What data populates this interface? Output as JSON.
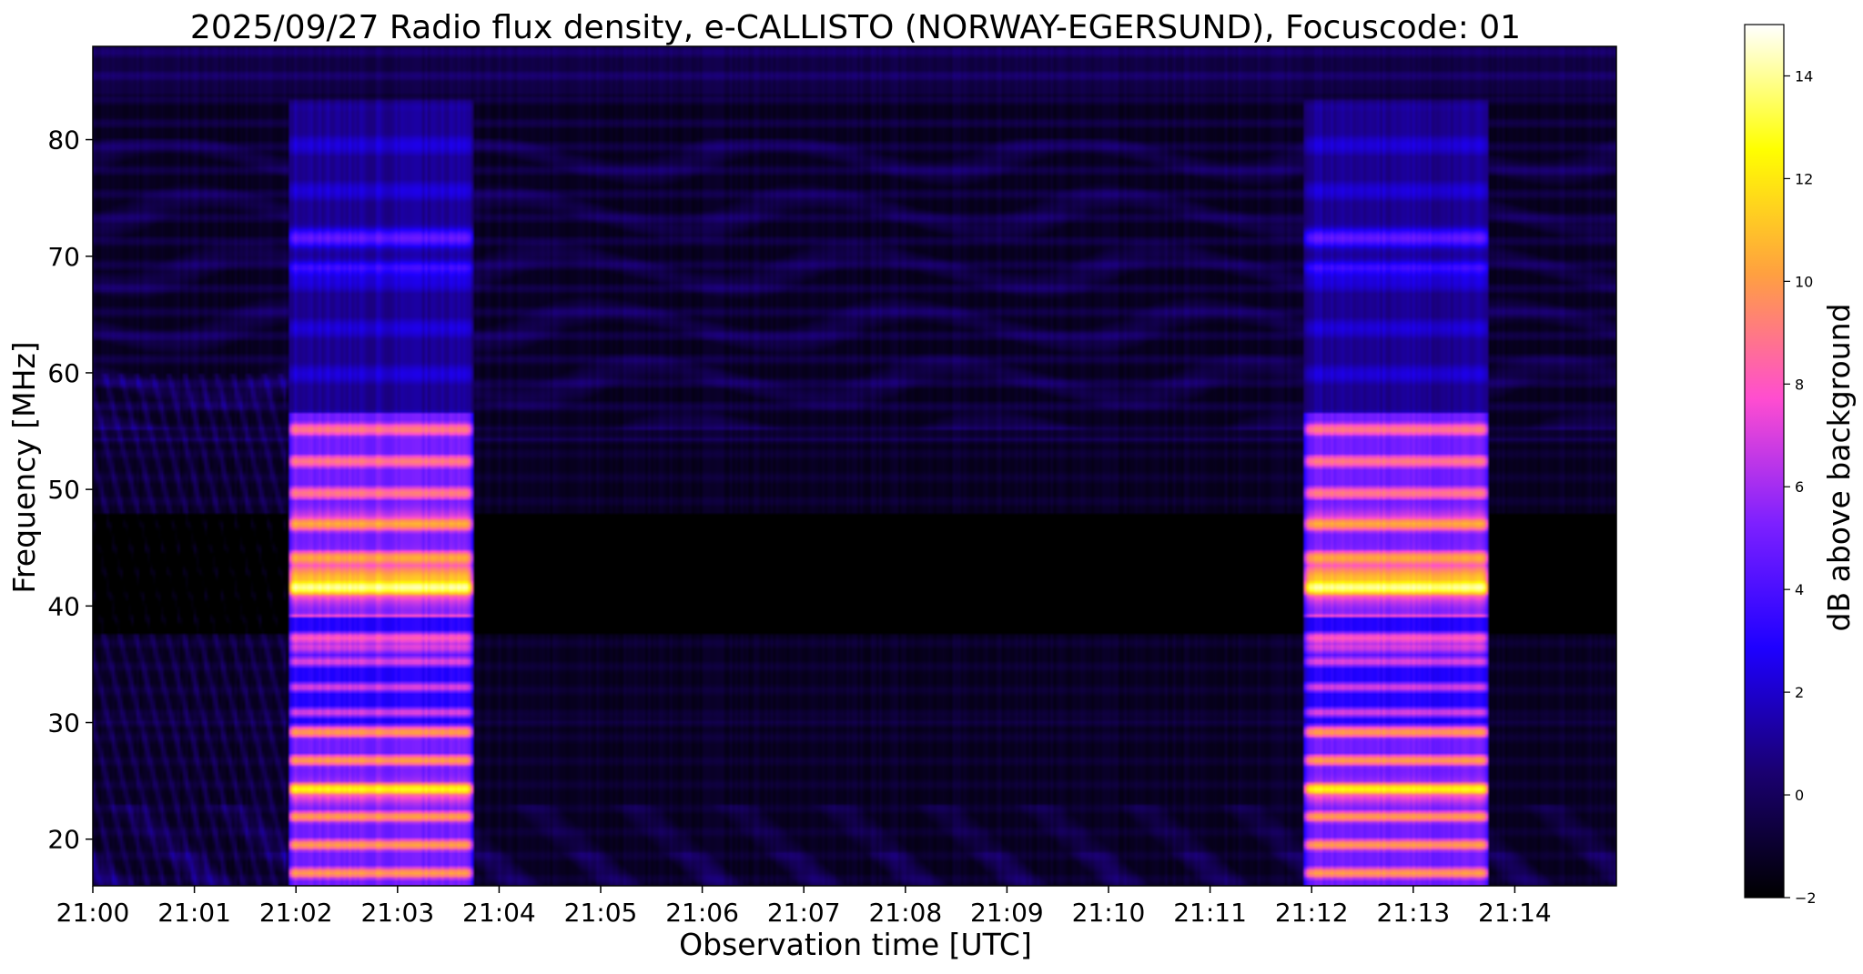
{
  "chart_data": {
    "type": "heatmap",
    "title": "2025/09/27  Radio flux density, e-CALLISTO (NORWAY-EGERSUND), Focuscode: 01",
    "xlabel": "Observation time [UTC]",
    "ylabel": "Frequency [MHz]",
    "colorbar_label": "dB above background",
    "colormap": "gnuplot2",
    "colormap_stops": [
      "#000000",
      "#1a0070",
      "#1e00ff",
      "#7d20ff",
      "#ff4dd0",
      "#ffa040",
      "#ffff00",
      "#ffffff"
    ],
    "x_ticks": [
      "21:00",
      "21:01",
      "21:02",
      "21:03",
      "21:04",
      "21:05",
      "21:06",
      "21:07",
      "21:08",
      "21:09",
      "21:10",
      "21:11",
      "21:12",
      "21:13",
      "21:14"
    ],
    "x_range_minutes": [
      0,
      15
    ],
    "y_ticks": [
      20,
      30,
      40,
      50,
      60,
      70,
      80
    ],
    "ylim": [
      16,
      88
    ],
    "colorbar_ticks": [
      -2,
      0,
      2,
      4,
      6,
      8,
      10,
      12,
      14
    ],
    "clim": [
      -2,
      15
    ],
    "bursts": [
      {
        "start": "21:01:55",
        "end": "21:03:45",
        "upper_freq_mhz": 83.5
      },
      {
        "start": "21:11:55",
        "end": "21:13:45",
        "upper_freq_mhz": 83.5
      }
    ],
    "grid": false
  }
}
